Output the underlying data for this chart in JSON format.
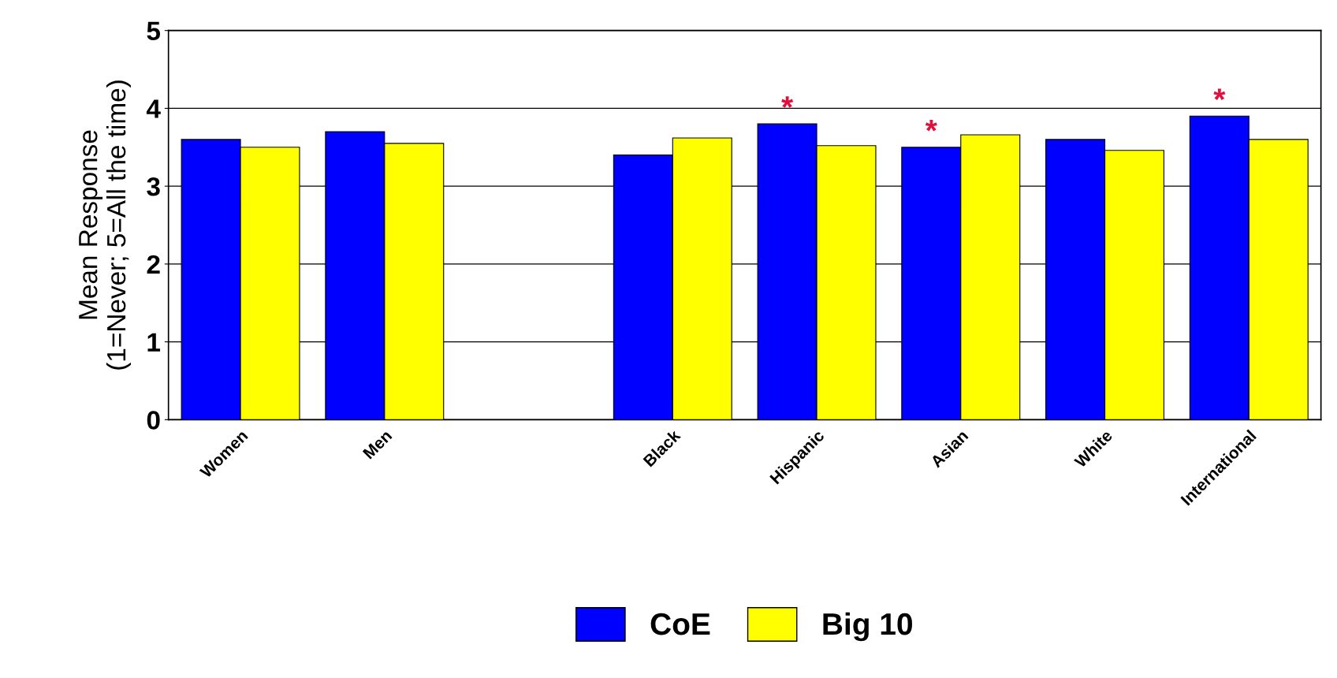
{
  "chart_data": {
    "type": "bar",
    "ylabel": "Mean Response\n(1=Never; 5=All the time)",
    "categories": [
      "Women",
      "Men",
      null,
      "Black",
      "Hispanic",
      "Asian",
      "White",
      "International"
    ],
    "series": [
      {
        "name": "CoE",
        "color": "#0000ff",
        "values": [
          3.6,
          3.7,
          null,
          3.4,
          3.8,
          3.5,
          3.6,
          3.9
        ]
      },
      {
        "name": "Big 10",
        "color": "#ffff00",
        "values": [
          3.5,
          3.55,
          null,
          3.62,
          3.52,
          3.66,
          3.46,
          3.6
        ]
      }
    ],
    "ylim": [
      0,
      5
    ],
    "yticks": [
      0,
      1,
      2,
      3,
      4,
      5
    ],
    "grid": "y",
    "legend": "bottom",
    "annotations": [
      {
        "text": "*",
        "x": "Hispanic",
        "y": 3.8
      },
      {
        "text": "*",
        "x": "Asian",
        "y": 3.5
      },
      {
        "text": "*",
        "x": "International",
        "y": 3.9
      }
    ]
  }
}
